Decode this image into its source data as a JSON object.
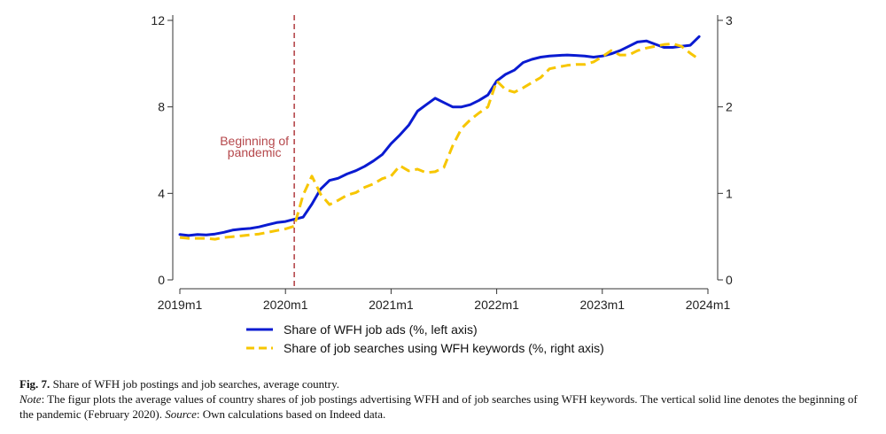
{
  "chart_data": {
    "type": "line",
    "x_ticks": [
      "2019m1",
      "2020m1",
      "2021m1",
      "2022m1",
      "2023m1",
      "2024m1"
    ],
    "y_left": {
      "ticks": [
        0,
        4,
        8,
        12
      ],
      "range": [
        0,
        12
      ]
    },
    "y_right": {
      "ticks": [
        0,
        1,
        2,
        3
      ],
      "range": [
        0,
        3
      ]
    },
    "annotation": {
      "line1": "Beginning of",
      "line2": "pandemic",
      "x": "2020m2",
      "color": "#b5474b"
    },
    "series": [
      {
        "name": "Share of WFH job ads (%, left axis)",
        "axis": "left",
        "color": "#0a1bd1",
        "style": "solid",
        "x": [
          "2019m1",
          "2019m2",
          "2019m3",
          "2019m4",
          "2019m5",
          "2019m6",
          "2019m7",
          "2019m8",
          "2019m9",
          "2019m10",
          "2019m11",
          "2019m12",
          "2020m1",
          "2020m2",
          "2020m3",
          "2020m4",
          "2020m5",
          "2020m6",
          "2020m7",
          "2020m8",
          "2020m9",
          "2020m10",
          "2020m11",
          "2020m12",
          "2021m1",
          "2021m2",
          "2021m3",
          "2021m4",
          "2021m5",
          "2021m6",
          "2021m7",
          "2021m8",
          "2021m9",
          "2021m10",
          "2021m11",
          "2021m12",
          "2022m1",
          "2022m2",
          "2022m3",
          "2022m4",
          "2022m5",
          "2022m6",
          "2022m7",
          "2022m8",
          "2022m9",
          "2022m10",
          "2022m11",
          "2022m12",
          "2023m1",
          "2023m2",
          "2023m3",
          "2023m4",
          "2023m5",
          "2023m6",
          "2023m7",
          "2023m8",
          "2023m9",
          "2023m10",
          "2023m11",
          "2023m12"
        ],
        "values": [
          2.1,
          2.05,
          2.1,
          2.08,
          2.12,
          2.2,
          2.3,
          2.35,
          2.38,
          2.45,
          2.55,
          2.65,
          2.7,
          2.8,
          2.9,
          3.5,
          4.2,
          4.6,
          4.7,
          4.9,
          5.05,
          5.25,
          5.5,
          5.8,
          6.3,
          6.7,
          7.15,
          7.8,
          8.1,
          8.4,
          8.2,
          8.0,
          8.0,
          8.1,
          8.3,
          8.55,
          9.2,
          9.5,
          9.7,
          10.05,
          10.2,
          10.3,
          10.35,
          10.38,
          10.4,
          10.38,
          10.35,
          10.3,
          10.35,
          10.45,
          10.6,
          10.8,
          11.0,
          11.05,
          10.9,
          10.75,
          10.75,
          10.8,
          10.85,
          11.25
        ]
      },
      {
        "name": "Share of job searches using WFH keywords (%, right axis)",
        "axis": "right",
        "color": "#f7c600",
        "style": "dashed",
        "x": [
          "2019m1",
          "2019m2",
          "2019m3",
          "2019m4",
          "2019m5",
          "2019m6",
          "2019m7",
          "2019m8",
          "2019m9",
          "2019m10",
          "2019m11",
          "2019m12",
          "2020m1",
          "2020m2",
          "2020m3",
          "2020m4",
          "2020m5",
          "2020m6",
          "2020m7",
          "2020m8",
          "2020m9",
          "2020m10",
          "2020m11",
          "2020m12",
          "2021m1",
          "2021m2",
          "2021m3",
          "2021m4",
          "2021m5",
          "2021m6",
          "2021m7",
          "2021m8",
          "2021m9",
          "2021m10",
          "2021m11",
          "2021m12",
          "2022m1",
          "2022m2",
          "2022m3",
          "2022m4",
          "2022m5",
          "2022m6",
          "2022m7",
          "2022m8",
          "2022m9",
          "2022m10",
          "2022m11",
          "2022m12",
          "2023m1",
          "2023m2",
          "2023m3",
          "2023m4",
          "2023m5",
          "2023m6",
          "2023m7",
          "2023m8",
          "2023m9",
          "2023m10",
          "2023m11",
          "2023m12"
        ],
        "values": [
          0.49,
          0.48,
          0.48,
          0.48,
          0.47,
          0.49,
          0.5,
          0.51,
          0.52,
          0.53,
          0.55,
          0.57,
          0.59,
          0.62,
          0.98,
          1.2,
          0.99,
          0.87,
          0.92,
          0.98,
          1.01,
          1.07,
          1.11,
          1.17,
          1.2,
          1.32,
          1.26,
          1.28,
          1.24,
          1.25,
          1.3,
          1.55,
          1.75,
          1.85,
          1.93,
          2.0,
          2.3,
          2.2,
          2.17,
          2.22,
          2.28,
          2.34,
          2.44,
          2.46,
          2.48,
          2.49,
          2.49,
          2.52,
          2.58,
          2.65,
          2.6,
          2.6,
          2.65,
          2.68,
          2.7,
          2.72,
          2.73,
          2.7,
          2.62,
          2.55
        ]
      }
    ],
    "legend_position": "bottom-center",
    "grid": false
  },
  "caption": {
    "fig_label": "Fig. 7.",
    "fig_title": "Share of WFH job postings and job searches, average country.",
    "note_label": "Note",
    "note_text": ": The figur plots the average values of country shares of job postings advertising WFH and of job searches using WFH keywords. The vertical solid line denotes the beginning of the pandemic (February 2020). ",
    "source_label": "Source",
    "source_text": ": Own calculations based on Indeed data."
  }
}
